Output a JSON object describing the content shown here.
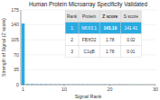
{
  "chart_data": {
    "type": "bar",
    "title": "Human Protein Microarray Specificity Validated",
    "x_label": "Signal Rank",
    "y_label": "Strength of Signal (Z score)",
    "x": [
      1,
      2,
      3,
      4,
      5,
      6,
      7,
      8,
      9,
      10,
      11,
      12,
      13,
      14,
      15,
      16,
      17,
      18,
      19,
      20,
      21,
      22,
      23,
      24,
      25,
      26,
      27,
      28,
      29,
      30
    ],
    "values": [
      143.19,
      1.78,
      1.78,
      1.5,
      1.4,
      1.3,
      1.2,
      1.1,
      1.0,
      0.9,
      0.85,
      0.8,
      0.75,
      0.7,
      0.65,
      0.6,
      0.55,
      0.5,
      0.48,
      0.45,
      0.42,
      0.4,
      0.38,
      0.35,
      0.33,
      0.3,
      0.28,
      0.25,
      0.22,
      0.2
    ],
    "colors": [
      "#29abe2",
      "#5bc8f5",
      "#5bc8f5",
      "#5bc8f5",
      "#5bc8f5",
      "#5bc8f5",
      "#5bc8f5",
      "#5bc8f5",
      "#5bc8f5",
      "#5bc8f5",
      "#5bc8f5",
      "#5bc8f5",
      "#5bc8f5",
      "#5bc8f5",
      "#5bc8f5",
      "#5bc8f5",
      "#5bc8f5",
      "#5bc8f5",
      "#5bc8f5",
      "#5bc8f5",
      "#5bc8f5",
      "#5bc8f5",
      "#5bc8f5",
      "#5bc8f5",
      "#5bc8f5",
      "#5bc8f5",
      "#5bc8f5",
      "#5bc8f5",
      "#5bc8f5",
      "#5bc8f5"
    ],
    "xlim": [
      0.5,
      30
    ],
    "xticks": [
      1,
      10,
      20,
      30
    ],
    "ylim": [
      0,
      175
    ],
    "yticks": [
      0,
      35,
      70,
      105,
      140,
      175
    ],
    "table": {
      "headers": [
        "Rank",
        "Protein",
        "Z score",
        "S score"
      ],
      "rows": [
        [
          "1",
          "NKX3.1",
          "143.19",
          "141.41"
        ],
        [
          "2",
          "FBXO2",
          "1.78",
          "0.02"
        ],
        [
          "3",
          "C1qB",
          "1.78",
          "0.01"
        ]
      ],
      "highlight_color": "#29abe2"
    }
  }
}
